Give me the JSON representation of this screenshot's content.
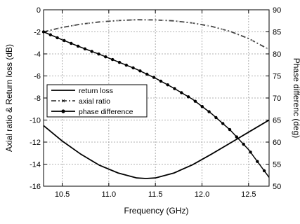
{
  "chart_data": {
    "type": "line",
    "title": "",
    "xlabel": "Frequency (GHz)",
    "ylabel_left": "Axial ratio & Return loss (dB)",
    "ylabel_right": "Phase differenc (deg)",
    "xlim": [
      10.3,
      12.72
    ],
    "ylim_left": [
      -16,
      0
    ],
    "ylim_right": [
      50,
      90
    ],
    "x_ticks": [
      10.5,
      11.0,
      11.5,
      12.0,
      12.5
    ],
    "x_tick_labels": [
      "10.5",
      "11.0",
      "11.5",
      "12.0",
      "12.5"
    ],
    "y_left_ticks": [
      0,
      -2,
      -4,
      -6,
      -8,
      -10,
      -12,
      -14,
      -16
    ],
    "y_left_tick_labels": [
      "0",
      "-2",
      "-4",
      "-6",
      "-8",
      "-10",
      "-12",
      "-14",
      "-16"
    ],
    "y_right_ticks": [
      90,
      85,
      80,
      75,
      70,
      65,
      60,
      55,
      50
    ],
    "y_right_tick_labels": [
      "90",
      "85",
      "80",
      "75",
      "70",
      "65",
      "60",
      "55",
      "50"
    ],
    "grid": true,
    "legend_position": "middle-left",
    "series": [
      {
        "name": "return loss",
        "axis": "left",
        "style": "solid",
        "color": "#000000",
        "x": [
          10.3,
          10.5,
          10.7,
          10.9,
          11.1,
          11.3,
          11.4,
          11.5,
          11.7,
          11.9,
          12.1,
          12.3,
          12.5,
          12.72
        ],
        "y": [
          -10.5,
          -11.9,
          -13.1,
          -14.1,
          -14.8,
          -15.25,
          -15.3,
          -15.25,
          -14.8,
          -14.05,
          -13.1,
          -12.1,
          -11.1,
          -10.0
        ]
      },
      {
        "name": "axial ratio",
        "axis": "left",
        "style": "dash-dot",
        "color": "#444444",
        "x": [
          10.3,
          10.5,
          10.7,
          10.9,
          11.1,
          11.3,
          11.5,
          11.7,
          11.9,
          12.1,
          12.3,
          12.5,
          12.72
        ],
        "y": [
          -2.0,
          -1.6,
          -1.3,
          -1.1,
          -0.98,
          -0.9,
          -0.92,
          -1.0,
          -1.2,
          -1.5,
          -1.95,
          -2.6,
          -3.6
        ]
      },
      {
        "name": "phase difference",
        "axis": "right",
        "style": "solid-dots",
        "color": "#000000",
        "x": [
          10.3,
          10.5,
          10.7,
          10.9,
          11.1,
          11.3,
          11.5,
          11.7,
          11.9,
          12.1,
          12.3,
          12.5,
          12.72
        ],
        "y": [
          85.0,
          83.2,
          81.5,
          79.9,
          78.2,
          76.5,
          74.5,
          72.2,
          69.7,
          66.5,
          62.8,
          58.3,
          52.0
        ]
      }
    ]
  }
}
